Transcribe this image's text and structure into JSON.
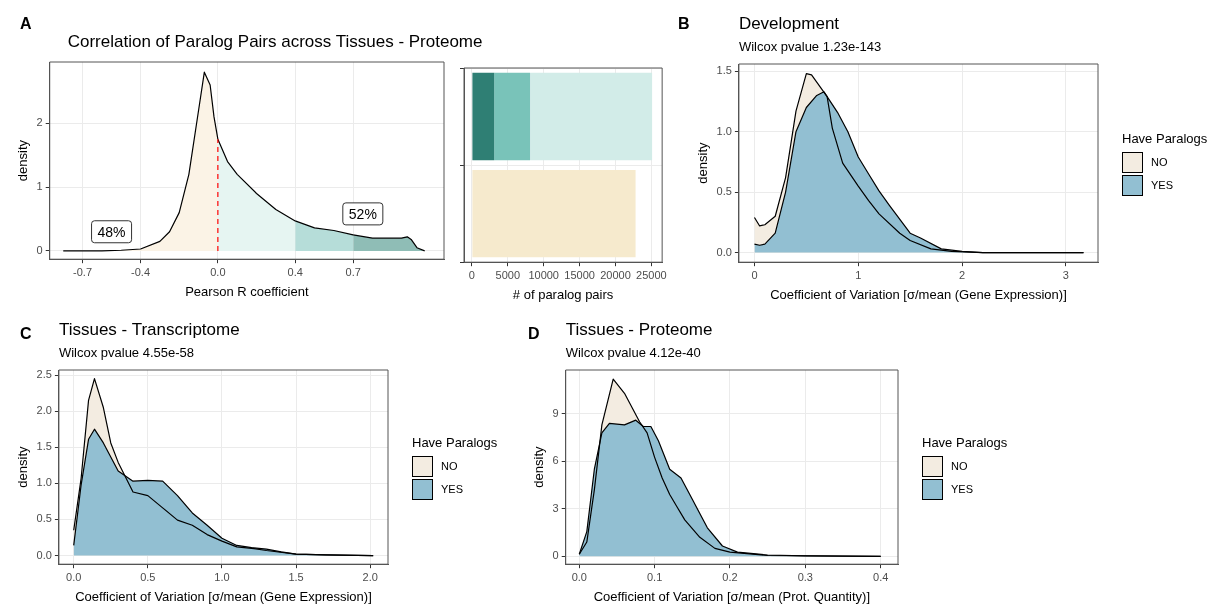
{
  "chart_data": [
    {
      "type": "area",
      "title": "Correlation of Paralog Pairs across Tissues - Proteome",
      "xlabel": "Pearson R coefficient",
      "ylabel": "density",
      "xlim": [
        -0.87,
        1.17
      ],
      "ylim": [
        -0.13,
        2.96
      ],
      "xticks": [
        -0.7,
        -0.4,
        {
          "value": 0,
          "label": "0.0"
        },
        0.4,
        0.7
      ],
      "yticks": [
        0,
        1,
        2
      ],
      "grid": true,
      "series": [
        {
          "color": "#fbf3e6",
          "x": [
            -0.8,
            -0.6,
            -0.5,
            -0.4,
            -0.3,
            -0.25,
            -0.2,
            -0.15,
            -0.1,
            -0.07,
            -0.04,
            -0.02,
            0
          ],
          "values": [
            0,
            0,
            0.01,
            0.03,
            0.15,
            0.3,
            0.6,
            1.2,
            2.2,
            2.8,
            2.6,
            2.1,
            1.75
          ]
        },
        {
          "color": "#e6f5f2",
          "x": [
            0,
            0.05,
            0.1,
            0.2,
            0.3,
            0.4
          ],
          "values": [
            1.75,
            1.4,
            1.2,
            0.9,
            0.65,
            0.47
          ]
        },
        {
          "color": "#b6ddd9",
          "x": [
            0.4,
            0.5,
            0.6,
            0.7
          ],
          "values": [
            0.47,
            0.36,
            0.32,
            0.25
          ]
        },
        {
          "color": "#8fbdb6",
          "x": [
            0.7,
            0.8,
            0.9,
            0.95,
            0.98,
            1.0,
            1.03,
            1.07
          ],
          "values": [
            0.25,
            0.2,
            0.2,
            0.2,
            0.22,
            0.18,
            0.05,
            0
          ]
        }
      ],
      "ref_lines": [
        {
          "axis": "x",
          "value": 0,
          "color": "#ff0000",
          "line_style": "dashed"
        }
      ],
      "annotations": [
        "A",
        {
          "text": "48%",
          "x": -0.55,
          "y": 0.3
        },
        {
          "text": "52%",
          "x": 0.75,
          "y": 0.58
        }
      ]
    },
    {
      "type": "bar",
      "orientation": "horizontal",
      "stacked": true,
      "xlabel": "# of paralog pairs",
      "categories": [
        null,
        null
      ],
      "xlim": [
        -1100,
        26500
      ],
      "xticks": [
        0,
        5000,
        10000,
        15000,
        20000,
        25000
      ],
      "grid": true,
      "tick_labels": "x",
      "series": [
        {
          "color": "#2f7f74",
          "values": [
            3100,
            null
          ]
        },
        {
          "color": "#79c3b9",
          "values": [
            5000,
            null
          ]
        },
        {
          "color": "#d2ece8",
          "values": [
            17000,
            null
          ]
        },
        {
          "color": "#f6eacd",
          "values": [
            null,
            22800
          ]
        }
      ]
    },
    {
      "type": "area",
      "title": "Development",
      "subtitle": "Wilcox pvalue 1.23e-143",
      "xlabel": "Coefficient of Variation [σ/mean (Gene Expression)]",
      "ylabel": "density",
      "xlim": [
        -0.15,
        3.31
      ],
      "ylim": [
        -0.08,
        1.56
      ],
      "xticks": [
        0,
        1,
        2,
        3
      ],
      "yticks": [
        {
          "value": 0,
          "label": "0.0"
        },
        0.5,
        {
          "value": 1,
          "label": "1.0"
        },
        1.5
      ],
      "grid": true,
      "legend": "right",
      "legend_title": "Have Paralogs",
      "series": [
        {
          "name": "NO",
          "color": "#f3ece1",
          "x": [
            0,
            0.05,
            0.1,
            0.2,
            0.3,
            0.4,
            0.5,
            0.55,
            0.65,
            0.7,
            0.75,
            0.85,
            1.0,
            1.1,
            1.2,
            1.4,
            1.5,
            1.7,
            1.9,
            2.2,
            3.17
          ],
          "values": [
            0.29,
            0.22,
            0.23,
            0.3,
            0.62,
            1.17,
            1.48,
            1.47,
            1.35,
            1.29,
            1.03,
            0.74,
            0.55,
            0.43,
            0.32,
            0.16,
            0.1,
            0.03,
            0.01,
            0,
            0
          ]
        },
        {
          "name": "YES",
          "color": "#92bfd2",
          "x": [
            0,
            0.05,
            0.1,
            0.2,
            0.3,
            0.4,
            0.5,
            0.6,
            0.67,
            0.8,
            0.9,
            1.0,
            1.1,
            1.2,
            1.3,
            1.5,
            1.6,
            1.8,
            2.0,
            2.2,
            3.17
          ],
          "values": [
            0.07,
            0.06,
            0.07,
            0.16,
            0.5,
            1.0,
            1.2,
            1.3,
            1.33,
            1.16,
            1.0,
            0.79,
            0.65,
            0.51,
            0.39,
            0.16,
            0.12,
            0.03,
            0.01,
            0,
            0
          ]
        }
      ],
      "annotations": [
        "B"
      ]
    },
    {
      "type": "area",
      "title": "Tissues - Transcriptome",
      "subtitle": "Wilcox pvalue 4.55e-58",
      "xlabel": "Coefficient of Variation [σ/mean (Gene Expression)]",
      "ylabel": "density",
      "xlim": [
        -0.1,
        2.12
      ],
      "ylim": [
        -0.12,
        2.57
      ],
      "xticks": [
        {
          "value": 0,
          "label": "0.0"
        },
        0.5,
        {
          "value": 1,
          "label": "1.0"
        },
        1.5,
        {
          "value": 2,
          "label": "2.0"
        }
      ],
      "yticks": [
        {
          "value": 0,
          "label": "0.0"
        },
        0.5,
        {
          "value": 1,
          "label": "1.0"
        },
        1.5,
        {
          "value": 2,
          "label": "2.0"
        },
        2.5
      ],
      "grid": true,
      "legend": "right",
      "legend_title": "Have Paralogs",
      "series": [
        {
          "name": "NO",
          "color": "#f3ece1",
          "x": [
            0,
            0.05,
            0.1,
            0.14,
            0.2,
            0.25,
            0.3,
            0.4,
            0.5,
            0.6,
            0.7,
            0.8,
            0.9,
            1.0,
            1.1,
            1.2,
            1.3,
            1.5,
            1.7,
            2.02
          ],
          "values": [
            0.35,
            1.07,
            2.15,
            2.45,
            2.05,
            1.56,
            1.29,
            0.88,
            0.83,
            0.66,
            0.49,
            0.42,
            0.29,
            0.2,
            0.12,
            0.1,
            0.07,
            0.02,
            0.01,
            0
          ]
        },
        {
          "name": "YES",
          "color": "#92bfd2",
          "x": [
            0,
            0.05,
            0.1,
            0.14,
            0.2,
            0.3,
            0.4,
            0.5,
            0.6,
            0.7,
            0.8,
            0.9,
            1.0,
            1.1,
            1.2,
            1.3,
            1.4,
            1.5,
            1.7,
            2.02
          ],
          "values": [
            0.14,
            0.98,
            1.61,
            1.75,
            1.56,
            1.17,
            1.03,
            1.04,
            1.03,
            0.83,
            0.59,
            0.42,
            0.24,
            0.14,
            0.11,
            0.09,
            0.05,
            0.02,
            0.01,
            0
          ]
        }
      ],
      "annotations": [
        "C"
      ]
    },
    {
      "type": "area",
      "title": "Tissues - Proteome",
      "subtitle": "Wilcox pvalue 4.12e-40",
      "xlabel": "Coefficient of Variation [σ/mean (Prot. Quantity)]",
      "ylabel": "density",
      "xlim": [
        -0.018,
        0.423
      ],
      "ylim": [
        -0.5,
        11.77
      ],
      "xticks": [
        {
          "value": 0,
          "label": "0.0"
        },
        0.1,
        0.2,
        0.3,
        0.4
      ],
      "yticks": [
        0,
        3,
        6,
        9
      ],
      "grid": true,
      "legend": "right",
      "legend_title": "Have Paralogs",
      "series": [
        {
          "name": "NO",
          "color": "#f3ece1",
          "x": [
            0,
            0.01,
            0.02,
            0.03,
            0.045,
            0.06,
            0.07,
            0.08,
            0.09,
            0.1,
            0.11,
            0.12,
            0.13,
            0.14,
            0.16,
            0.18,
            0.2,
            0.25,
            0.4
          ],
          "values": [
            0.13,
            0.9,
            4.2,
            8.3,
            11.2,
            10.3,
            9.4,
            8.5,
            7.8,
            6.25,
            4.95,
            3.9,
            3.1,
            2.3,
            1.2,
            0.5,
            0.26,
            0.05,
            0
          ]
        },
        {
          "name": "YES",
          "color": "#92bfd2",
          "x": [
            0,
            0.01,
            0.02,
            0.03,
            0.04,
            0.06,
            0.075,
            0.085,
            0.095,
            0.105,
            0.12,
            0.135,
            0.15,
            0.17,
            0.19,
            0.21,
            0.25,
            0.3,
            0.4
          ],
          "values": [
            0.13,
            1.56,
            5.5,
            7.8,
            8.4,
            8.3,
            8.6,
            8.2,
            8.2,
            7.3,
            5.5,
            4.95,
            3.6,
            1.8,
            0.65,
            0.26,
            0.08,
            0.03,
            0
          ]
        }
      ],
      "annotations": [
        "D"
      ]
    }
  ]
}
